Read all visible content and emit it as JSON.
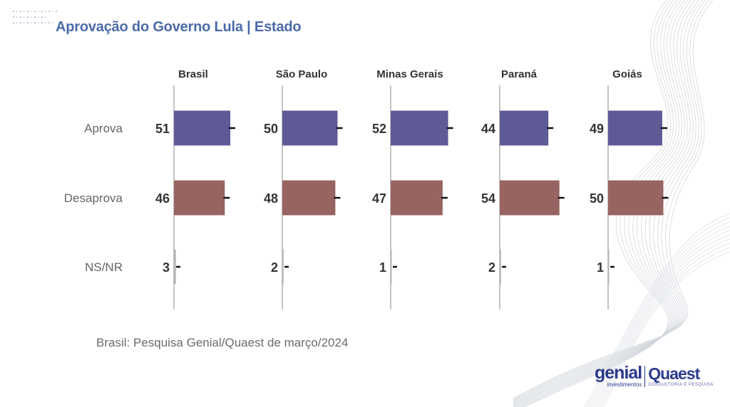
{
  "header": {
    "title": "Aprovação do Governo Lula | Estado"
  },
  "footnote": "Brasil: Pesquisa Genial/Quaest de março/2024",
  "logos": {
    "genial_name": "genial",
    "genial_sub": "investimentos",
    "quaest_name": "Quaest",
    "quaest_sub": "CONSULTORIA E PESQUISA"
  },
  "colors": {
    "title": "#4b6aa8",
    "aprova": "#5e5a96",
    "desaprova": "#976462",
    "nsnr": "#b5b5b5",
    "axis": "#c4c4c4",
    "value_label": "#333333",
    "errorbar": "#111111"
  },
  "chart_data": {
    "type": "bar",
    "orientation": "horizontal",
    "title": "Aprovação do Governo Lula | Estado",
    "categories": [
      "Aprova",
      "Desaprova",
      "NS/NR"
    ],
    "panels": [
      {
        "name": "Brasil",
        "values": [
          51,
          46,
          3
        ]
      },
      {
        "name": "São Paulo",
        "values": [
          50,
          48,
          2
        ]
      },
      {
        "name": "Minas Gerais",
        "values": [
          52,
          47,
          1
        ]
      },
      {
        "name": "Paraná",
        "values": [
          44,
          54,
          2
        ]
      },
      {
        "name": "Goiás",
        "values": [
          49,
          50,
          1
        ]
      }
    ],
    "xlim": [
      0,
      60
    ],
    "error_bars": true,
    "grid": false,
    "legend": "none",
    "xlabel": "",
    "ylabel": ""
  }
}
